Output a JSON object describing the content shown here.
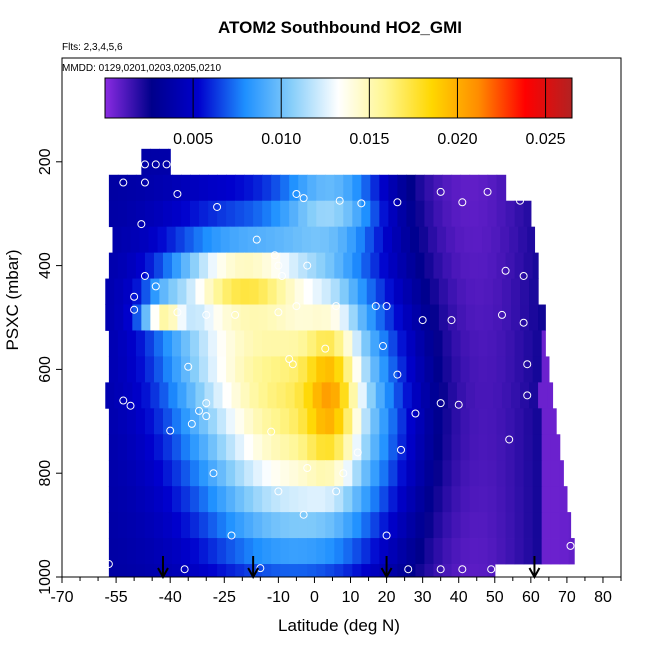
{
  "title": "ATOM2 Southbound HO2_GMI",
  "flights_note": "Flts: 2,3,4,5,6",
  "dates_note": "MMDD: 0129,0201,0203,0205,0210",
  "chart_data": {
    "type": "heatmap",
    "title": "ATOM2 Southbound HO2_GMI",
    "xlabel": "Latitude (deg N)",
    "ylabel": "PSXC (mbar)",
    "xlim": [
      -70,
      85
    ],
    "ylim": [
      1000,
      0
    ],
    "x_ticks": [
      -70,
      -55,
      -40,
      -25,
      -10,
      0,
      10,
      20,
      30,
      40,
      50,
      60,
      70,
      80
    ],
    "x_tick_labels": [
      "-70",
      "-55",
      "-40",
      "-25",
      "-10",
      "0",
      "10",
      "20",
      "30",
      "40",
      "50",
      "60",
      "70",
      "80"
    ],
    "y_ticks": [
      200,
      400,
      600,
      800,
      1000
    ],
    "y_tick_labels": [
      "200",
      "400",
      "600",
      "800",
      "1000"
    ],
    "colorbar": {
      "min": 0.0,
      "max": 0.0265,
      "ticks": [
        0.005,
        0.01,
        0.015,
        0.02,
        0.025
      ],
      "tick_labels": [
        "0.005",
        "0.010",
        "0.015",
        "0.020",
        "0.025"
      ],
      "colors": [
        "#8a2be2",
        "#00008b",
        "#0000cd",
        "#1e90ff",
        "#87cefa",
        "#ffffff",
        "#fff68f",
        "#ffd700",
        "#ff8c00",
        "#ff0000",
        "#b22222"
      ]
    },
    "rows": [
      {
        "p": 200,
        "lat_min": -48,
        "lat_max": -40
      },
      {
        "p": 250,
        "lat_min": -57,
        "lat_max": 53
      },
      {
        "p": 300,
        "lat_min": -57,
        "lat_max": 60
      },
      {
        "p": 350,
        "lat_min": -56,
        "lat_max": 61
      },
      {
        "p": 400,
        "lat_min": -57,
        "lat_max": 62
      },
      {
        "p": 450,
        "lat_min": -58,
        "lat_max": 62
      },
      {
        "p": 500,
        "lat_min": -58,
        "lat_max": 64
      },
      {
        "p": 550,
        "lat_min": -57,
        "lat_max": 64
      },
      {
        "p": 600,
        "lat_min": -57,
        "lat_max": 65
      },
      {
        "p": 650,
        "lat_min": -58,
        "lat_max": 66
      },
      {
        "p": 700,
        "lat_min": -57,
        "lat_max": 67
      },
      {
        "p": 750,
        "lat_min": -57,
        "lat_max": 68
      },
      {
        "p": 800,
        "lat_min": -57,
        "lat_max": 69
      },
      {
        "p": 850,
        "lat_min": -57,
        "lat_max": 70
      },
      {
        "p": 900,
        "lat_min": -57,
        "lat_max": 71
      },
      {
        "p": 950,
        "lat_min": -57,
        "lat_max": 72
      },
      {
        "p": 1000,
        "lat_min": -57,
        "lat_max": 50
      }
    ],
    "arrows_lat": [
      -42,
      -17,
      20,
      61
    ],
    "points": [
      {
        "x": -44,
        "y": 205
      },
      {
        "x": -47,
        "y": 205
      },
      {
        "x": -41,
        "y": 205
      },
      {
        "x": -53,
        "y": 240
      },
      {
        "x": -47,
        "y": 240
      },
      {
        "x": -38,
        "y": 262
      },
      {
        "x": -5,
        "y": 262
      },
      {
        "x": -3,
        "y": 270
      },
      {
        "x": 7,
        "y": 275
      },
      {
        "x": 23,
        "y": 278
      },
      {
        "x": 35,
        "y": 258
      },
      {
        "x": 41,
        "y": 278
      },
      {
        "x": 48,
        "y": 258
      },
      {
        "x": 57,
        "y": 275
      },
      {
        "x": -27,
        "y": 287
      },
      {
        "x": 13,
        "y": 280
      },
      {
        "x": -48,
        "y": 320
      },
      {
        "x": -16,
        "y": 350
      },
      {
        "x": -11,
        "y": 380
      },
      {
        "x": -10,
        "y": 400
      },
      {
        "x": -2,
        "y": 400
      },
      {
        "x": -9,
        "y": 420
      },
      {
        "x": -47,
        "y": 420
      },
      {
        "x": 53,
        "y": 410
      },
      {
        "x": 58,
        "y": 420
      },
      {
        "x": -44,
        "y": 440
      },
      {
        "x": -50,
        "y": 460
      },
      {
        "x": -50,
        "y": 485
      },
      {
        "x": -38,
        "y": 490
      },
      {
        "x": -30,
        "y": 495
      },
      {
        "x": -22,
        "y": 495
      },
      {
        "x": -10,
        "y": 490
      },
      {
        "x": -5,
        "y": 478
      },
      {
        "x": 6,
        "y": 478
      },
      {
        "x": 17,
        "y": 478
      },
      {
        "x": 20,
        "y": 478
      },
      {
        "x": 30,
        "y": 505
      },
      {
        "x": 38,
        "y": 505
      },
      {
        "x": 52,
        "y": 495
      },
      {
        "x": 58,
        "y": 510
      },
      {
        "x": 19,
        "y": 555
      },
      {
        "x": -7,
        "y": 580
      },
      {
        "x": -6,
        "y": 590
      },
      {
        "x": 3,
        "y": 560
      },
      {
        "x": -35,
        "y": 595
      },
      {
        "x": 23,
        "y": 610
      },
      {
        "x": 59,
        "y": 590
      },
      {
        "x": -53,
        "y": 660
      },
      {
        "x": -51,
        "y": 670
      },
      {
        "x": -30,
        "y": 665
      },
      {
        "x": -32,
        "y": 680
      },
      {
        "x": -30,
        "y": 690
      },
      {
        "x": -34,
        "y": 705
      },
      {
        "x": 28,
        "y": 685
      },
      {
        "x": 35,
        "y": 665
      },
      {
        "x": 40,
        "y": 668
      },
      {
        "x": 59,
        "y": 650
      },
      {
        "x": 54,
        "y": 735
      },
      {
        "x": -12,
        "y": 720
      },
      {
        "x": -40,
        "y": 718
      },
      {
        "x": 24,
        "y": 755
      },
      {
        "x": 12,
        "y": 760
      },
      {
        "x": 8,
        "y": 800
      },
      {
        "x": -2,
        "y": 790
      },
      {
        "x": -28,
        "y": 800
      },
      {
        "x": -10,
        "y": 835
      },
      {
        "x": 6,
        "y": 835
      },
      {
        "x": -3,
        "y": 880
      },
      {
        "x": 20,
        "y": 920
      },
      {
        "x": -23,
        "y": 920
      },
      {
        "x": -57,
        "y": 975
      },
      {
        "x": -36,
        "y": 985
      },
      {
        "x": 26,
        "y": 985
      },
      {
        "x": 35,
        "y": 985
      },
      {
        "x": 41,
        "y": 985
      },
      {
        "x": 49,
        "y": 985
      },
      {
        "x": 71,
        "y": 940
      },
      {
        "x": -15,
        "y": 983
      }
    ]
  }
}
